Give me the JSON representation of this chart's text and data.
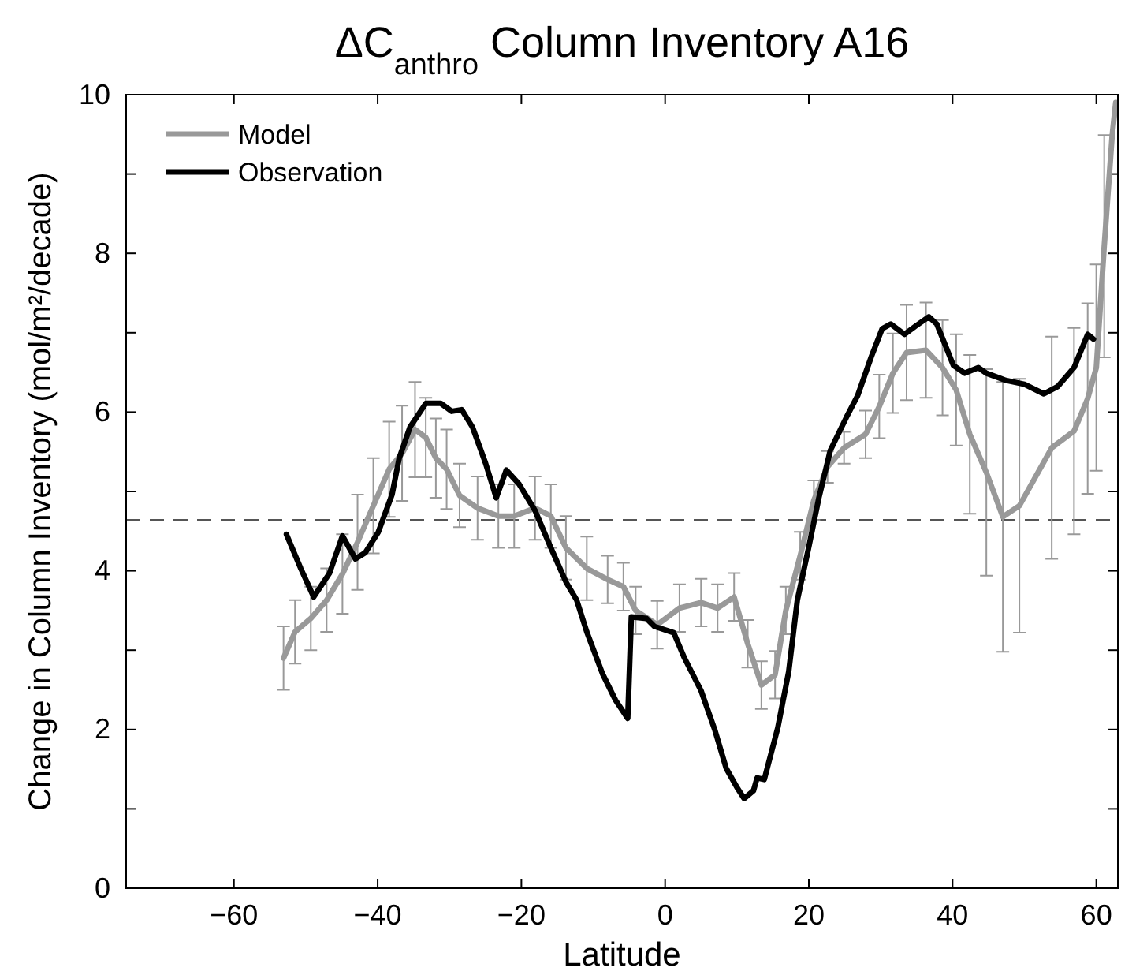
{
  "chart_data": {
    "type": "line",
    "title": "ΔC$_{anthro}$ Column Inventory A16",
    "xlabel": "Latitude",
    "ylabel": "Change in Column Inventory (mol/m²/decade)",
    "xlim": [
      -75,
      63
    ],
    "ylim": [
      0,
      10
    ],
    "xticks": [
      -60,
      -40,
      -20,
      0,
      20,
      40,
      60
    ],
    "yticks": [
      0,
      {
        "value": 1,
        "label": null
      },
      2,
      {
        "value": 3,
        "label": null
      },
      4,
      {
        "value": 5,
        "label": null
      },
      6,
      {
        "value": 7,
        "label": null
      },
      8,
      {
        "value": 9,
        "label": null
      },
      10
    ],
    "legend": "top left",
    "ref_lines": [
      {
        "axis": "y",
        "value": 4.64,
        "color": "#555555",
        "line_style": "dashed"
      }
    ],
    "series": [
      {
        "name": "Model",
        "color": "#999999",
        "x": [
          -53.1,
          -51.5,
          -49.3,
          -47.1,
          -44.9,
          -42.8,
          -40.6,
          -38.4,
          -36.6,
          -34.8,
          -33.3,
          -31.9,
          -30.4,
          -28.6,
          -26.1,
          -23.2,
          -21.0,
          -18.1,
          -15.9,
          -13.8,
          -10.9,
          -8.0,
          -5.8,
          -4.1,
          -1.1,
          2.0,
          5.0,
          7.3,
          9.6,
          11.5,
          13.4,
          15.3,
          16.8,
          18.8,
          20.7,
          22.6,
          24.9,
          27.9,
          29.8,
          31.7,
          33.6,
          36.3,
          38.6,
          40.5,
          42.4,
          44.7,
          47.0,
          49.3,
          53.8,
          56.9,
          58.8,
          60.0,
          61.1,
          62.2,
          62.7
        ],
        "values": [
          2.9,
          3.23,
          3.4,
          3.63,
          3.96,
          4.36,
          4.82,
          5.28,
          5.48,
          5.78,
          5.68,
          5.42,
          5.28,
          4.95,
          4.79,
          4.69,
          4.69,
          4.79,
          4.69,
          4.29,
          4.03,
          3.89,
          3.8,
          3.5,
          3.32,
          3.53,
          3.6,
          3.53,
          3.67,
          3.08,
          2.56,
          2.69,
          3.5,
          4.19,
          4.89,
          5.31,
          5.55,
          5.72,
          6.07,
          6.49,
          6.75,
          6.78,
          6.56,
          6.28,
          5.72,
          5.24,
          4.68,
          4.82,
          5.55,
          5.76,
          6.17,
          6.56,
          8.09,
          9.48,
          9.9
        ],
        "errors": [
          0.4,
          0.4,
          0.4,
          0.4,
          0.5,
          0.6,
          0.6,
          0.6,
          0.6,
          0.6,
          0.5,
          0.5,
          0.5,
          0.4,
          0.4,
          0.4,
          0.4,
          0.4,
          0.4,
          0.4,
          0.4,
          0.3,
          0.3,
          0.3,
          0.3,
          0.3,
          0.3,
          0.3,
          0.3,
          0.3,
          0.3,
          0.3,
          0.3,
          0.3,
          0.25,
          0.2,
          0.2,
          0.3,
          0.4,
          0.5,
          0.6,
          0.6,
          0.6,
          0.7,
          1.0,
          1.3,
          1.7,
          1.6,
          1.4,
          1.3,
          1.2,
          1.3,
          1.4,
          null,
          null
        ]
      },
      {
        "name": "Observation",
        "color": "#000000",
        "x": [
          -52.7,
          -50.7,
          -48.9,
          -46.7,
          -44.9,
          -43.1,
          -41.7,
          -39.9,
          -38.0,
          -37.0,
          -35.5,
          -33.3,
          -31.2,
          -29.7,
          -28.3,
          -26.8,
          -25.0,
          -23.5,
          -22.1,
          -20.3,
          -18.1,
          -15.9,
          -13.8,
          -12.3,
          -10.9,
          -8.7,
          -6.9,
          -5.2,
          -4.7,
          -2.6,
          -1.5,
          1.2,
          2.7,
          5.0,
          6.9,
          8.5,
          10.0,
          11.0,
          12.3,
          12.8,
          13.8,
          15.7,
          17.2,
          18.4,
          19.9,
          21.4,
          23.0,
          25.2,
          26.8,
          28.7,
          30.2,
          31.4,
          33.3,
          34.8,
          36.7,
          37.8,
          39.0,
          40.1,
          41.7,
          43.6,
          44.7,
          47.4,
          50.0,
          52.7,
          54.6,
          56.9,
          58.8,
          59.6
        ],
        "values": [
          4.46,
          4.03,
          3.67,
          3.97,
          4.44,
          4.15,
          4.23,
          4.49,
          4.96,
          5.42,
          5.81,
          6.11,
          6.11,
          6.01,
          6.03,
          5.81,
          5.36,
          4.92,
          5.27,
          5.09,
          4.76,
          4.29,
          3.86,
          3.63,
          3.23,
          2.7,
          2.37,
          2.14,
          3.42,
          3.4,
          3.3,
          3.22,
          2.9,
          2.49,
          2.0,
          1.51,
          1.27,
          1.13,
          1.23,
          1.39,
          1.37,
          2.03,
          2.73,
          3.63,
          4.26,
          4.92,
          5.52,
          5.93,
          6.21,
          6.7,
          7.05,
          7.11,
          6.98,
          7.08,
          7.2,
          7.11,
          6.84,
          6.59,
          6.49,
          6.56,
          6.49,
          6.4,
          6.35,
          6.23,
          6.32,
          6.56,
          6.98,
          6.92
        ]
      }
    ]
  }
}
